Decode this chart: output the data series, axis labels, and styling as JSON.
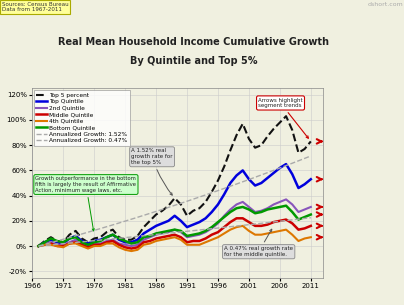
{
  "title_line1": "Real Mean Household Income Cumulative Growth",
  "title_line2": "By Quintile and Top 5%",
  "source_text": "Sources: Census Bureau\nData from 1967-2011",
  "watermark": "dshort.com",
  "years": [
    1967,
    1968,
    1969,
    1970,
    1971,
    1972,
    1973,
    1974,
    1975,
    1976,
    1977,
    1978,
    1979,
    1980,
    1981,
    1982,
    1983,
    1984,
    1985,
    1986,
    1987,
    1988,
    1989,
    1990,
    1991,
    1992,
    1993,
    1994,
    1995,
    1996,
    1997,
    1998,
    1999,
    2000,
    2001,
    2002,
    2003,
    2004,
    2005,
    2006,
    2007,
    2008,
    2009,
    2010,
    2011
  ],
  "top5_pct": [
    0,
    4,
    7,
    4,
    3,
    9,
    12,
    6,
    3,
    6,
    7,
    11,
    13,
    7,
    5,
    5,
    8,
    15,
    20,
    25,
    28,
    32,
    38,
    33,
    24,
    28,
    30,
    35,
    43,
    52,
    63,
    76,
    88,
    97,
    85,
    78,
    80,
    87,
    93,
    98,
    103,
    92,
    74,
    77,
    83
  ],
  "top_quintile": [
    0,
    3,
    5,
    3,
    2,
    6,
    8,
    4,
    2,
    4,
    5,
    7,
    9,
    5,
    3,
    3,
    5,
    10,
    13,
    16,
    18,
    20,
    24,
    20,
    15,
    17,
    19,
    22,
    27,
    33,
    41,
    50,
    56,
    60,
    53,
    48,
    50,
    54,
    58,
    62,
    65,
    57,
    46,
    49,
    53
  ],
  "quintile2": [
    0,
    2,
    3,
    1,
    1,
    3,
    5,
    2,
    0,
    2,
    2,
    4,
    5,
    2,
    1,
    0,
    1,
    5,
    7,
    9,
    10,
    11,
    13,
    11,
    7,
    8,
    9,
    11,
    14,
    18,
    24,
    29,
    33,
    35,
    31,
    27,
    28,
    30,
    33,
    35,
    37,
    33,
    27,
    29,
    31
  ],
  "middle_quintile": [
    0,
    1,
    2,
    0,
    0,
    2,
    3,
    1,
    -1,
    1,
    1,
    3,
    4,
    1,
    -1,
    -2,
    -1,
    3,
    4,
    6,
    7,
    8,
    9,
    7,
    3,
    4,
    4,
    6,
    9,
    11,
    15,
    19,
    22,
    22,
    19,
    16,
    16,
    17,
    19,
    20,
    21,
    18,
    13,
    14,
    16
  ],
  "quintile4": [
    0,
    1,
    1,
    0,
    -1,
    2,
    2,
    0,
    -2,
    0,
    0,
    2,
    2,
    -1,
    -3,
    -4,
    -3,
    1,
    2,
    4,
    5,
    6,
    7,
    5,
    1,
    1,
    1,
    3,
    5,
    7,
    10,
    13,
    15,
    16,
    12,
    9,
    9,
    10,
    11,
    12,
    13,
    9,
    4,
    6,
    7
  ],
  "bottom_quintile": [
    0,
    3,
    6,
    4,
    3,
    6,
    7,
    3,
    1,
    3,
    4,
    7,
    9,
    6,
    4,
    2,
    3,
    7,
    8,
    10,
    11,
    12,
    13,
    12,
    8,
    9,
    10,
    12,
    15,
    19,
    23,
    27,
    30,
    31,
    29,
    26,
    27,
    29,
    30,
    31,
    32,
    27,
    21,
    23,
    25
  ],
  "trend_high": [
    0,
    1.33,
    2.67,
    4.02,
    5.39,
    6.77,
    8.16,
    9.56,
    10.98,
    12.41,
    13.85,
    15.31,
    16.78,
    18.27,
    19.77,
    21.28,
    22.81,
    24.35,
    25.91,
    27.48,
    29.06,
    30.66,
    32.27,
    33.9,
    35.54,
    37.2,
    38.87,
    40.56,
    42.26,
    43.97,
    45.7,
    47.44,
    49.2,
    50.97,
    52.76,
    54.56,
    56.38,
    58.21,
    60.06,
    61.92,
    63.8,
    65.69,
    67.6,
    69.52,
    71.46
  ],
  "trend_low": [
    0,
    0.47,
    0.94,
    1.41,
    1.88,
    2.36,
    2.83,
    3.31,
    3.79,
    4.27,
    4.75,
    5.23,
    5.72,
    6.2,
    6.69,
    7.18,
    7.67,
    8.17,
    8.67,
    9.17,
    9.67,
    10.17,
    10.68,
    11.19,
    11.7,
    12.21,
    12.73,
    13.25,
    13.77,
    14.29,
    14.82,
    15.35,
    15.88,
    16.41,
    16.95,
    17.49,
    18.03,
    18.57,
    19.12,
    19.67,
    20.22,
    20.78,
    21.34,
    21.9,
    22.46
  ],
  "bg_color": "#f0f0e0",
  "plot_bg": "#f0f0e0",
  "grid_color": "#cccccc",
  "ylim": [
    -25,
    125
  ],
  "yticks": [
    -20,
    0,
    20,
    40,
    60,
    80,
    100,
    120
  ],
  "ytick_labels": [
    "-20%",
    "0%",
    "20%",
    "40%",
    "60%",
    "80%",
    "100%",
    "120%"
  ],
  "xticks": [
    1966,
    1971,
    1976,
    1981,
    1986,
    1991,
    1996,
    2001,
    2006,
    2011
  ],
  "xlim": [
    1966,
    2013
  ],
  "legend_items": [
    "-- Top 5 percent",
    "Top Quintile",
    "2nd Quintile",
    "Middle Quintile",
    "4th Quintile",
    "Bottom Quintile",
    "Annualized Growth: 1.52%",
    "Annualized Growth: 0.47%"
  ],
  "line_colors": [
    "#111111",
    "#0000dd",
    "#8855bb",
    "#cc0000",
    "#dd7700",
    "#009900",
    "#aaaaaa",
    "#aaaaaa"
  ],
  "line_styles": [
    "--",
    "-",
    "-",
    "-",
    "-",
    "-",
    "--",
    "--"
  ],
  "line_widths": [
    1.5,
    1.8,
    1.5,
    1.8,
    1.5,
    1.8,
    1.0,
    1.0
  ],
  "source_box_color": "#ffff99",
  "source_box_edge": "#aaaa00"
}
